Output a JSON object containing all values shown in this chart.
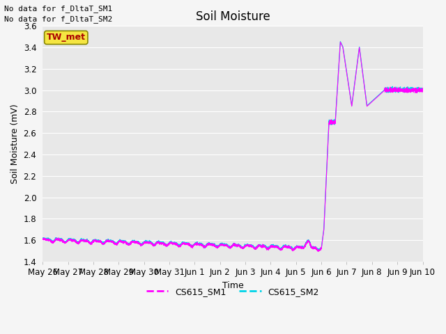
{
  "title": "Soil Moisture",
  "ylabel": "Soil Moisture (mV)",
  "xlabel": "Time",
  "ylim": [
    1.4,
    3.6
  ],
  "yticks": [
    1.4,
    1.6,
    1.8,
    2.0,
    2.2,
    2.4,
    2.6,
    2.8,
    3.0,
    3.2,
    3.4,
    3.6
  ],
  "xtick_labels": [
    "May 26",
    "May 27",
    "May 28",
    "May 29",
    "May 30",
    "May 31",
    "Jun 1",
    "Jun 2",
    "Jun 3",
    "Jun 4",
    "Jun 5",
    "Jun 6",
    "Jun 7",
    "Jun 8",
    "Jun 9",
    "Jun 10"
  ],
  "text_no_data_1": "No data for f_DltaT_SM1",
  "text_no_data_2": "No data for f_DltaT_SM2",
  "tw_met_label": "TW_met",
  "legend_entries": [
    "CS615_SM1",
    "CS615_SM2"
  ],
  "sm1_color": "#ff00ff",
  "sm2_color": "#00d4e8",
  "background_color": "#e8e8e8",
  "grid_color": "#ffffff",
  "title_fontsize": 12,
  "label_fontsize": 9,
  "tick_fontsize": 8.5
}
